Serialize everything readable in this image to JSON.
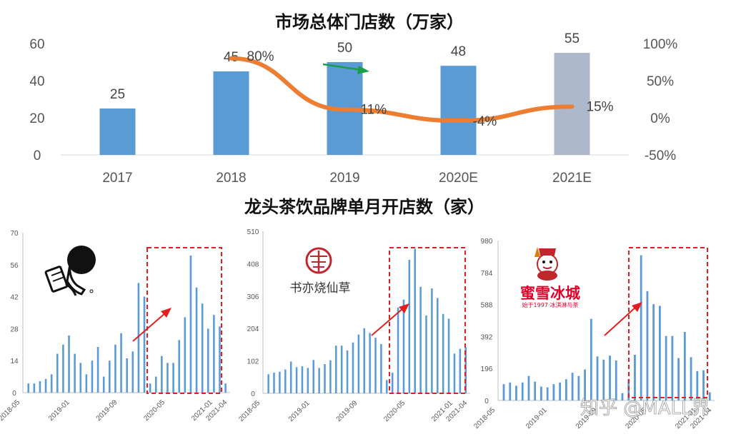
{
  "top_chart": {
    "title": "市场总体门店数（万家）",
    "chart_data": {
      "type": "bar+line",
      "categories": [
        "2017",
        "2018",
        "2019",
        "2020E",
        "2021E"
      ],
      "bar_values": [
        25,
        45,
        50,
        48,
        55
      ],
      "bar_labels": [
        "25",
        "45",
        "50",
        "48",
        "55"
      ],
      "line_values": [
        80,
        11,
        -4,
        15
      ],
      "line_labels": [
        "80%",
        "11%",
        "-4%",
        "15%"
      ],
      "y_left_ticks": [
        "60",
        "40",
        "20",
        "0"
      ],
      "y_left_lim": [
        0,
        60
      ],
      "y_right_ticks": [
        "100%",
        "50%",
        "0%",
        "-50%"
      ],
      "y_right_lim": [
        -50,
        100
      ],
      "bar_color": "#5b9bd5",
      "bar_color_forecast": "#adb9ca",
      "line_color": "#ed7d31"
    }
  },
  "bottom_title": "龙头茶饮品牌单月开店数（家）",
  "small_charts": [
    {
      "brand": "喜茶",
      "chart_data": {
        "type": "bar",
        "ylim": [
          0,
          70
        ],
        "y_ticks": [
          "70",
          "56",
          "42",
          "28",
          "14",
          "0"
        ],
        "x_labels": [
          "2018-05",
          "2019-01",
          "2019-09",
          "2020-05",
          "2021-01",
          "2021-04"
        ],
        "values": [
          4,
          4,
          5,
          6,
          8,
          17,
          21,
          25,
          17,
          13,
          8,
          14,
          20,
          7,
          14,
          21,
          26,
          15,
          18,
          48,
          42,
          4,
          7,
          16,
          13,
          13,
          23,
          33,
          60,
          46,
          39,
          28,
          34,
          29,
          4
        ]
      }
    },
    {
      "brand": "书亦烧仙草",
      "chart_data": {
        "type": "bar",
        "ylim": [
          0,
          510
        ],
        "y_ticks": [
          "510",
          "408",
          "306",
          "204",
          "102",
          "0"
        ],
        "x_labels": [
          "2018-05",
          "2019-01",
          "2019-09",
          "2020-05",
          "2021-01",
          "2021-04"
        ],
        "values": [
          60,
          65,
          68,
          75,
          100,
          82,
          85,
          80,
          105,
          80,
          92,
          104,
          150,
          150,
          135,
          160,
          185,
          205,
          190,
          175,
          155,
          42,
          65,
          270,
          295,
          420,
          455,
          335,
          245,
          330,
          300,
          250,
          235,
          125,
          140,
          145
        ]
      }
    },
    {
      "brand": "蜜雪冰城",
      "brand_tagline": "始于1997·冰淇淋与茶",
      "chart_data": {
        "type": "bar",
        "ylim": [
          0,
          980
        ],
        "y_ticks": [
          "980",
          "784",
          "588",
          "392",
          "196",
          "0"
        ],
        "x_labels": [
          "2018-05",
          "2019-01",
          "2019-09",
          "2020-05",
          "2021-01",
          "2021-04"
        ],
        "values": [
          100,
          110,
          90,
          110,
          150,
          115,
          85,
          80,
          100,
          110,
          130,
          170,
          150,
          190,
          500,
          270,
          250,
          275,
          245,
          45,
          130,
          280,
          890,
          670,
          590,
          580,
          395,
          395,
          260,
          420,
          265,
          180,
          185,
          50
        ]
      }
    }
  ],
  "watermark": "知乎 @MALL界"
}
